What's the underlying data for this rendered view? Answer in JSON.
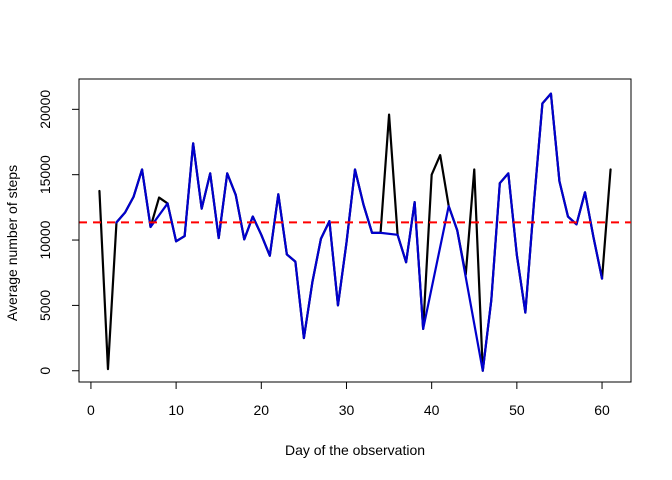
{
  "chart_data": {
    "type": "line",
    "title": "",
    "xlabel": "Day of the observation",
    "ylabel": "Average number of steps",
    "xlim": [
      -1.4,
      63.4
    ],
    "ylim": [
      -860,
      22320
    ],
    "xticks": [
      0,
      10,
      20,
      30,
      40,
      50,
      60
    ],
    "yticks": [
      0,
      5000,
      10000,
      15000,
      20000
    ],
    "grid": false,
    "legend": null,
    "reference_line": {
      "y": 11350,
      "style": "dashed",
      "color": "#ff0000"
    },
    "series": [
      {
        "color": "#000000",
        "x": [
          1,
          2,
          3,
          4,
          5,
          6,
          7,
          8,
          9,
          10,
          11,
          12,
          13,
          14,
          15,
          16,
          17,
          18,
          19,
          20,
          21,
          22,
          23,
          24,
          25,
          26,
          27,
          28,
          29,
          30,
          31,
          32,
          33,
          34,
          35,
          36,
          37,
          38,
          39,
          40,
          41,
          42,
          43,
          44,
          45,
          46,
          47,
          48,
          49,
          50,
          51,
          52,
          53,
          54,
          55,
          56,
          57,
          58,
          59,
          60,
          61
        ],
        "y": [
          13750,
          126,
          11350,
          12100,
          13300,
          15400,
          11000,
          13250,
          12800,
          9900,
          10300,
          17400,
          12400,
          15100,
          10150,
          15100,
          13450,
          10050,
          11800,
          10400,
          8800,
          13500,
          8900,
          8350,
          2500,
          6800,
          10100,
          11450,
          5000,
          9800,
          15400,
          12700,
          10550,
          10550,
          19600,
          10400,
          8300,
          12900,
          3200,
          15000,
          16500,
          12600,
          10750,
          7350,
          15400,
          0,
          5400,
          14350,
          15100,
          8850,
          4450,
          12800,
          20450,
          21200,
          14500,
          11800,
          11200,
          13650,
          10200,
          7050,
          15400
        ]
      },
      {
        "color": "#0000cc",
        "x": [
          3,
          4,
          5,
          6,
          7,
          9,
          10,
          11,
          12,
          13,
          14,
          15,
          16,
          17,
          18,
          19,
          20,
          21,
          22,
          23,
          24,
          25,
          26,
          27,
          28,
          29,
          30,
          31,
          32,
          33,
          34,
          36,
          37,
          38,
          39,
          42,
          43,
          46,
          47,
          48,
          49,
          50,
          51,
          52,
          53,
          54,
          55,
          56,
          57,
          58,
          59,
          60
        ],
        "y": [
          11350,
          12100,
          13300,
          15400,
          11000,
          12800,
          9900,
          10300,
          17400,
          12400,
          15100,
          10150,
          15100,
          13450,
          10050,
          11800,
          10400,
          8800,
          13500,
          8900,
          8350,
          2500,
          6800,
          10100,
          11450,
          5000,
          9800,
          15400,
          12700,
          10550,
          10550,
          10400,
          8300,
          12900,
          3200,
          12600,
          10750,
          0,
          5400,
          14350,
          15100,
          8850,
          4450,
          12800,
          20450,
          21200,
          14500,
          11800,
          11200,
          13650,
          10200,
          7050
        ]
      }
    ]
  }
}
